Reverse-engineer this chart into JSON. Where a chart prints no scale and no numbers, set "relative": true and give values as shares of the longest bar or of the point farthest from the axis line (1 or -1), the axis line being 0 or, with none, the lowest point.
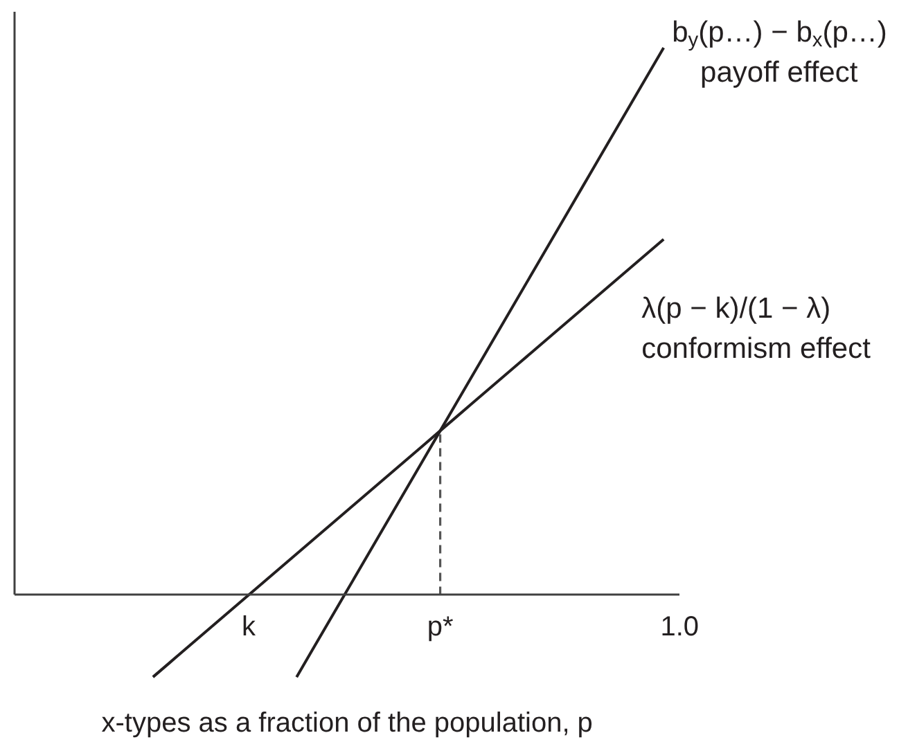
{
  "chart_data": {
    "type": "line",
    "relative": true,
    "xlabel": "x-types as a fraction of the population, p",
    "categories": [
      null,
      null,
      null,
      null,
      null,
      null,
      "k",
      null,
      null,
      null,
      null,
      null,
      null,
      null,
      null,
      null,
      null,
      null,
      "p*",
      null,
      null,
      null,
      null,
      null,
      null,
      null,
      null,
      null,
      null,
      null,
      null,
      null,
      null,
      "1.0"
    ],
    "series": [
      {
        "name": "b$_{y}$(p…) − b$_{x}$(p…)\npayoff effect",
        "color": "#231f20",
        "values": [
          null,
          null,
          null,
          null,
          null,
          null,
          null,
          null,
          null,
          -0.15,
          -0.1,
          -0.05,
          0,
          0.05,
          0.1,
          0.15,
          0.2,
          0.25,
          0.3,
          0.35,
          0.4,
          0.45,
          0.5,
          0.55,
          0.6,
          0.65,
          0.7,
          0.75,
          0.8,
          0.85,
          0.9,
          0.95,
          1,
          null
        ]
      },
      {
        "name": "λ(p − k)/(1 − λ)\nconformism effect",
        "color": "#231f20",
        "values": [
          -0.15,
          -0.125,
          -0.1,
          -0.075,
          -0.05,
          -0.025,
          0,
          0.025,
          0.05,
          0.075,
          0.1,
          0.125,
          0.15,
          0.175,
          0.2,
          0.225,
          0.25,
          0.275,
          0.3,
          0.325,
          0.35,
          0.375,
          0.4,
          0.425,
          0.45,
          0.475,
          0.5,
          0.525,
          0.55,
          0.575,
          0.6,
          0.625,
          0.65,
          null
        ]
      },
      {
        "color": "#555555",
        "line_style": "dashed",
        "x": [
          "p*",
          "p*"
        ],
        "values": [
          0,
          0.3
        ]
      }
    ],
    "grid": false
  }
}
